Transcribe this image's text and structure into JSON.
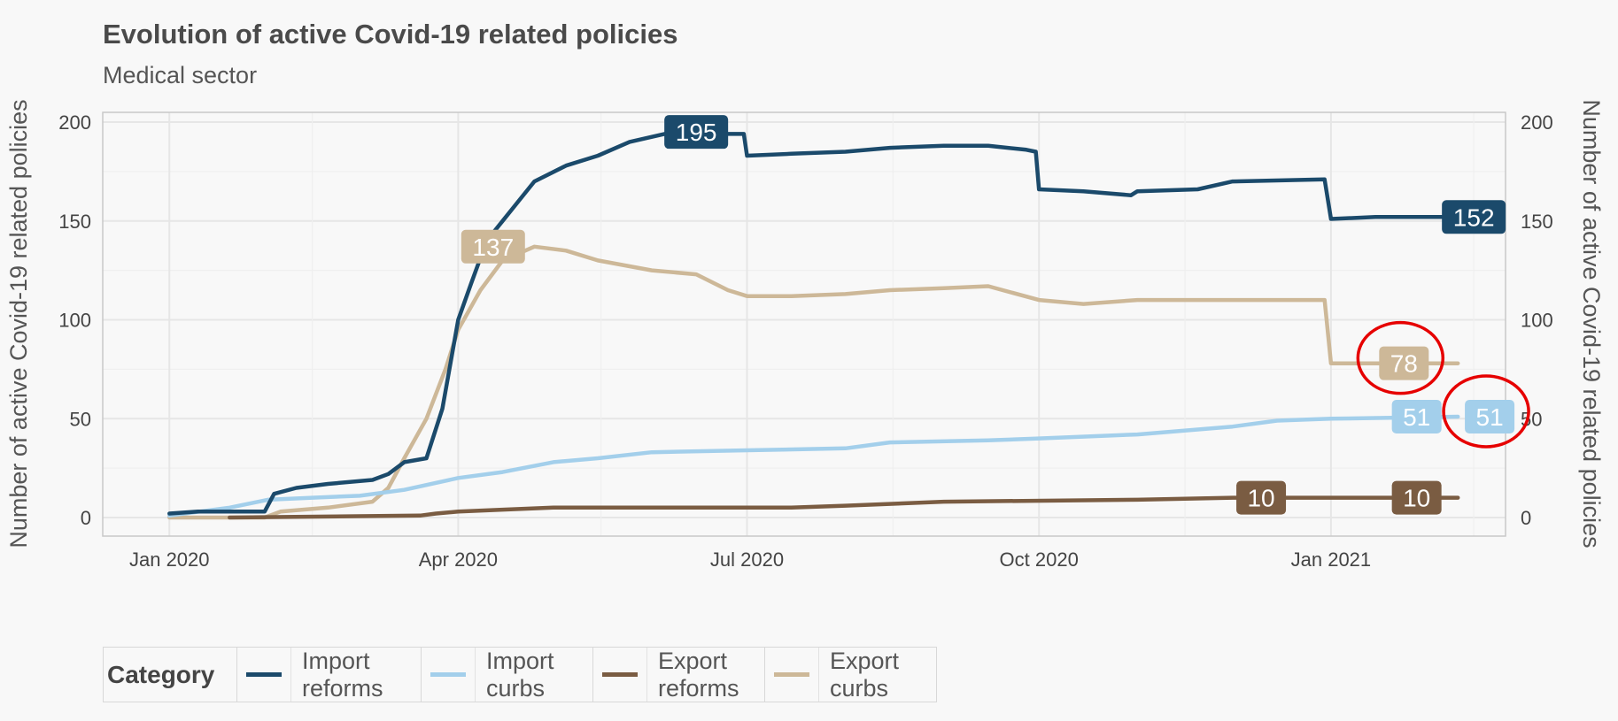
{
  "chart_data": {
    "type": "line",
    "title": "Evolution of active Covid-19 related policies",
    "subtitle": "Medical sector",
    "ylabel": "Number of active Covid-19 related policies",
    "ylabel_right": "Number of active Covid-19 related policies",
    "xlabel": "",
    "x_ticks": [
      "Jan 2020",
      "Apr 2020",
      "Jul 2020",
      "Oct 2020",
      "Jan 2021"
    ],
    "y_ticks": [
      0,
      50,
      100,
      150,
      200
    ],
    "ylim": [
      0,
      200
    ],
    "xlim": [
      "2019-12-11",
      "2021-02-25"
    ],
    "grid": true,
    "legend_title": "Category",
    "legend_position": "bottom",
    "series": [
      {
        "name": "Import reforms",
        "color": "#1b4a6b",
        "points": [
          [
            "2020-01-01",
            2
          ],
          [
            "2020-01-10",
            3
          ],
          [
            "2020-01-31",
            3
          ],
          [
            "2020-02-03",
            12
          ],
          [
            "2020-02-10",
            15
          ],
          [
            "2020-02-20",
            17
          ],
          [
            "2020-03-05",
            19
          ],
          [
            "2020-03-10",
            22
          ],
          [
            "2020-03-15",
            28
          ],
          [
            "2020-03-22",
            30
          ],
          [
            "2020-03-27",
            55
          ],
          [
            "2020-04-01",
            100
          ],
          [
            "2020-04-05",
            118
          ],
          [
            "2020-04-10",
            140
          ],
          [
            "2020-04-15",
            150
          ],
          [
            "2020-04-20",
            160
          ],
          [
            "2020-04-25",
            170
          ],
          [
            "2020-05-05",
            178
          ],
          [
            "2020-05-15",
            183
          ],
          [
            "2020-05-25",
            190
          ],
          [
            "2020-06-05",
            194
          ],
          [
            "2020-06-25",
            194
          ],
          [
            "2020-06-30",
            194
          ],
          [
            "2020-07-01",
            183
          ],
          [
            "2020-07-15",
            184
          ],
          [
            "2020-08-01",
            185
          ],
          [
            "2020-08-15",
            187
          ],
          [
            "2020-09-01",
            188
          ],
          [
            "2020-09-15",
            188
          ],
          [
            "2020-09-27",
            186
          ],
          [
            "2020-09-30",
            185
          ],
          [
            "2020-10-01",
            166
          ],
          [
            "2020-10-15",
            165
          ],
          [
            "2020-10-30",
            163
          ],
          [
            "2020-11-01",
            165
          ],
          [
            "2020-11-20",
            166
          ],
          [
            "2020-12-01",
            170
          ],
          [
            "2020-12-30",
            171
          ],
          [
            "2021-01-01",
            151
          ],
          [
            "2021-01-15",
            152
          ],
          [
            "2021-02-10",
            152
          ]
        ],
        "labels": [
          {
            "x": "2020-06-15",
            "y": 195,
            "text": "195"
          },
          {
            "x": "2021-02-15",
            "y": 152,
            "text": "152"
          }
        ]
      },
      {
        "name": "Import curbs",
        "color": "#a3cfeb",
        "points": [
          [
            "2020-01-01",
            1
          ],
          [
            "2020-01-20",
            5
          ],
          [
            "2020-02-01",
            9
          ],
          [
            "2020-02-15",
            10
          ],
          [
            "2020-03-01",
            11
          ],
          [
            "2020-03-15",
            14
          ],
          [
            "2020-04-01",
            20
          ],
          [
            "2020-04-15",
            23
          ],
          [
            "2020-05-01",
            28
          ],
          [
            "2020-05-15",
            30
          ],
          [
            "2020-06-01",
            33
          ],
          [
            "2020-07-01",
            34
          ],
          [
            "2020-08-01",
            35
          ],
          [
            "2020-08-15",
            38
          ],
          [
            "2020-09-15",
            39
          ],
          [
            "2020-10-01",
            40
          ],
          [
            "2020-11-01",
            42
          ],
          [
            "2020-12-01",
            46
          ],
          [
            "2020-12-15",
            49
          ],
          [
            "2021-01-01",
            50
          ],
          [
            "2021-02-10",
            51
          ]
        ],
        "labels": [
          {
            "x": "2021-01-28",
            "y": 51,
            "text": "51"
          },
          {
            "x": "2021-02-20",
            "y": 51,
            "text": "51"
          }
        ]
      },
      {
        "name": "Export reforms",
        "color": "#7a5c42",
        "points": [
          [
            "2020-01-20",
            0
          ],
          [
            "2020-03-20",
            1
          ],
          [
            "2020-03-25",
            2
          ],
          [
            "2020-04-01",
            3
          ],
          [
            "2020-04-15",
            4
          ],
          [
            "2020-05-01",
            5
          ],
          [
            "2020-06-01",
            5
          ],
          [
            "2020-07-15",
            5
          ],
          [
            "2020-08-01",
            6
          ],
          [
            "2020-09-01",
            8
          ],
          [
            "2020-11-01",
            9
          ],
          [
            "2020-12-01",
            10
          ],
          [
            "2021-02-10",
            10
          ]
        ],
        "labels": [
          {
            "x": "2020-12-10",
            "y": 10,
            "text": "10"
          },
          {
            "x": "2021-01-28",
            "y": 10,
            "text": "10"
          }
        ]
      },
      {
        "name": "Export curbs",
        "color": "#cdb898",
        "points": [
          [
            "2020-01-01",
            0
          ],
          [
            "2020-01-31",
            0
          ],
          [
            "2020-02-05",
            3
          ],
          [
            "2020-02-20",
            5
          ],
          [
            "2020-03-05",
            8
          ],
          [
            "2020-03-10",
            15
          ],
          [
            "2020-03-15",
            30
          ],
          [
            "2020-03-22",
            50
          ],
          [
            "2020-03-28",
            75
          ],
          [
            "2020-04-01",
            95
          ],
          [
            "2020-04-08",
            115
          ],
          [
            "2020-04-15",
            130
          ],
          [
            "2020-04-25",
            137
          ],
          [
            "2020-05-05",
            135
          ],
          [
            "2020-05-15",
            130
          ],
          [
            "2020-06-01",
            125
          ],
          [
            "2020-06-15",
            123
          ],
          [
            "2020-06-25",
            115
          ],
          [
            "2020-07-01",
            112
          ],
          [
            "2020-07-15",
            112
          ],
          [
            "2020-08-01",
            113
          ],
          [
            "2020-08-15",
            115
          ],
          [
            "2020-09-01",
            116
          ],
          [
            "2020-09-15",
            117
          ],
          [
            "2020-10-01",
            110
          ],
          [
            "2020-10-15",
            108
          ],
          [
            "2020-11-01",
            110
          ],
          [
            "2020-12-01",
            110
          ],
          [
            "2020-12-30",
            110
          ],
          [
            "2021-01-01",
            78
          ],
          [
            "2021-02-10",
            78
          ]
        ],
        "labels": [
          {
            "x": "2020-04-12",
            "y": 137,
            "text": "137"
          },
          {
            "x": "2021-01-24",
            "y": 78,
            "text": "78"
          }
        ]
      }
    ],
    "highlights": [
      {
        "x": "2021-01-24",
        "y": 78
      },
      {
        "x": "2021-02-20",
        "y": 51
      }
    ]
  }
}
